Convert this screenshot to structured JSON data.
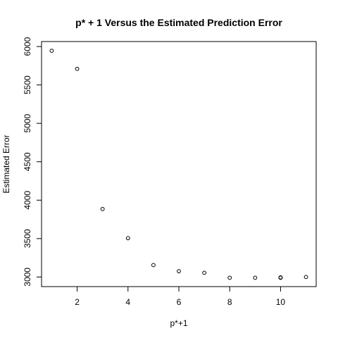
{
  "chart_data": {
    "type": "scatter",
    "title": "p* + 1 Versus the Estimated Prediction Error",
    "xlabel": "p*+1",
    "ylabel": "Estimated Error",
    "xlim": [
      0.6,
      11.4
    ],
    "ylim": [
      2875,
      6065
    ],
    "x_ticks": [
      2,
      4,
      6,
      8,
      10
    ],
    "y_ticks": [
      3000,
      3500,
      4000,
      4500,
      5000,
      5500,
      6000
    ],
    "grid": false,
    "legend": "none",
    "marker": "open-circle",
    "colors": {
      "points": "#000000",
      "axes": "#000000",
      "background": "#ffffff"
    },
    "points": [
      {
        "x": 1,
        "y": 5945
      },
      {
        "x": 2,
        "y": 5710
      },
      {
        "x": 3,
        "y": 3885
      },
      {
        "x": 4,
        "y": 3505
      },
      {
        "x": 5,
        "y": 3155
      },
      {
        "x": 6,
        "y": 3075
      },
      {
        "x": 7,
        "y": 3055
      },
      {
        "x": 8,
        "y": 2990
      },
      {
        "x": 9,
        "y": 2990
      },
      {
        "x": 10,
        "y": 2995
      },
      {
        "x": 10,
        "y": 2990
      },
      {
        "x": 11,
        "y": 3000
      }
    ]
  }
}
